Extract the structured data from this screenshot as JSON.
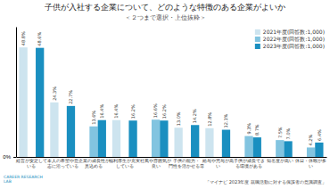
{
  "chart_data": {
    "type": "bar",
    "title": "子供が入社する企業について、どのような特徴のある企業がよいか",
    "subtitle": "＜２つまで選択・上位抜粋＞",
    "categories": [
      "経営が安定して\nいる",
      "本人の希望や意\n志に沿っている",
      "企業の成長性が\n見込める",
      "福利厚生が充実\nしている",
      "社風や雰囲気が\n良い",
      "子供の能力・\n門性を活かせる専",
      "給与や賞与が高\nい",
      "子供が成長でき\nる環境がある",
      "知名度が高い",
      "休日・休暇が多\nい"
    ],
    "series": [
      {
        "name": "2021年度(回答数:1,000)",
        "color": "#cde4ef",
        "values": [
          48.8,
          24.3,
          null,
          16.4,
          null,
          13.0,
          12.8,
          null,
          null,
          null
        ],
        "value_labels": [
          "48.8%",
          "24.3%",
          null,
          "16.4%",
          null,
          "13.0%",
          "12.8%",
          null,
          null,
          null
        ]
      },
      {
        "name": "2022年度(回答数:1,000)",
        "color": "#82c4e0",
        "values": [
          null,
          null,
          13.6,
          null,
          16.6,
          null,
          null,
          9.3,
          7.5,
          4.2
        ],
        "value_labels": [
          null,
          null,
          "13.6%",
          null,
          "16.6%",
          null,
          null,
          "9.3%",
          "7.5%",
          "4.2%"
        ]
      },
      {
        "name": "2023年度(回答数:1,000)",
        "color": "#1a8fc0",
        "values": [
          48.6,
          22.7,
          16.4,
          16.2,
          16.2,
          14.2,
          12.1,
          8.7,
          7.0,
          6.4
        ],
        "value_labels": [
          "48.6%",
          "22.7%",
          "16.4%",
          "16.2%",
          "16.2%",
          "14.2%",
          "12.1%",
          "8.7%",
          "7.0%",
          "6.4%"
        ]
      }
    ],
    "ylim": [
      0,
      58
    ],
    "yticks": [
      {
        "value": 0,
        "label": "0%"
      }
    ],
    "grid": false,
    "legend": "upper right",
    "data_labels": true,
    "annotations": [
      "「マイナビ 2023年度 就職活動に対する保護者の意識調査」",
      "CAREER RESEARCH\nLAB"
    ]
  }
}
